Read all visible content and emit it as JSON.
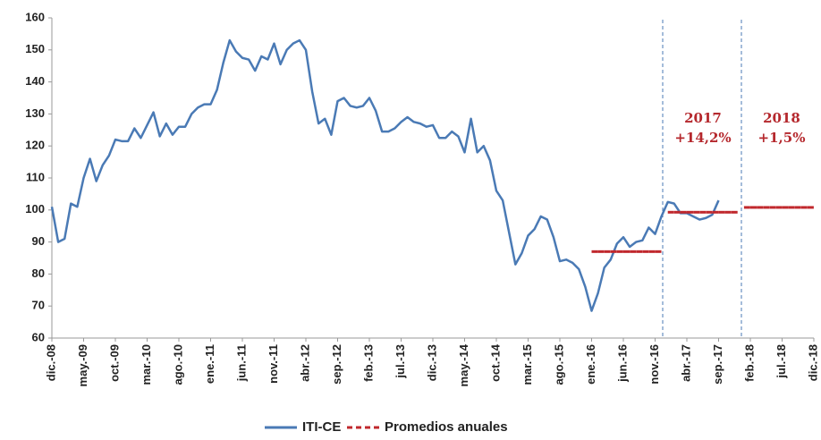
{
  "chart_data": {
    "type": "line",
    "categories": [
      "dic.-08",
      null,
      null,
      null,
      null,
      "may.-09",
      null,
      null,
      null,
      null,
      "oct.-09",
      null,
      null,
      null,
      null,
      "mar.-10",
      null,
      null,
      null,
      null,
      "ago.-10",
      null,
      null,
      null,
      null,
      "ene.-11",
      null,
      null,
      null,
      null,
      "jun.-11",
      null,
      null,
      null,
      null,
      "nov.-11",
      null,
      null,
      null,
      null,
      "abr.-12",
      null,
      null,
      null,
      null,
      "sep.-12",
      null,
      null,
      null,
      null,
      "feb.-13",
      null,
      null,
      null,
      null,
      "jul.-13",
      null,
      null,
      null,
      null,
      "dic.-13",
      null,
      null,
      null,
      null,
      "may.-14",
      null,
      null,
      null,
      null,
      "oct.-14",
      null,
      null,
      null,
      null,
      "mar.-15",
      null,
      null,
      null,
      null,
      "ago.-15",
      null,
      null,
      null,
      null,
      "ene.-16",
      null,
      null,
      null,
      null,
      "jun.-16",
      null,
      null,
      null,
      null,
      "nov.-16",
      null,
      null,
      null,
      null,
      "abr.-17",
      null,
      null,
      null,
      null,
      "sep.-17",
      null,
      null,
      null,
      null,
      "feb.-18",
      null,
      null,
      null,
      null,
      "jul.-18",
      null,
      null,
      null,
      null,
      "dic.-18"
    ],
    "series": [
      {
        "name": "ITI-CE",
        "color": "#4a7ab5",
        "style": "solid",
        "values": [
          101,
          90,
          91,
          102,
          101,
          110,
          116,
          109,
          114,
          117,
          122,
          121.5,
          121.5,
          125.5,
          122.5,
          126.5,
          130.5,
          123,
          127,
          123.5,
          126,
          126,
          130,
          132,
          133,
          133,
          137.5,
          146,
          153,
          149.5,
          147.5,
          147,
          143.5,
          148,
          147,
          152,
          145.5,
          150,
          152,
          153,
          150,
          137,
          127,
          128.5,
          123.5,
          134,
          135,
          132.5,
          132,
          132.5,
          135,
          131,
          124.5,
          124.5,
          125.5,
          127.5,
          129,
          127.5,
          127,
          126,
          126.5,
          122.5,
          122.5,
          124.5,
          123,
          118,
          128.5,
          118,
          120,
          115.5,
          106,
          103,
          93,
          83,
          86.5,
          92,
          94,
          98,
          97,
          91.5,
          84,
          84.5,
          83.5,
          81.5,
          76,
          68.5,
          74,
          82,
          84.5,
          89.5,
          91.5,
          88.5,
          90,
          90.5,
          94.5,
          92.5,
          98,
          102.5,
          102,
          99,
          99,
          98,
          97,
          97.5,
          98.5,
          103,
          null,
          null,
          null,
          null,
          null,
          null,
          null,
          null,
          null,
          null,
          null,
          null,
          null,
          null,
          null
        ]
      },
      {
        "name": "Promedios anuales",
        "color": "#c0282d",
        "style": "dashed",
        "values": [
          null,
          null,
          null,
          null,
          null,
          null,
          null,
          null,
          null,
          null,
          null,
          null,
          null,
          null,
          null,
          null,
          null,
          null,
          null,
          null,
          null,
          null,
          null,
          null,
          null,
          null,
          null,
          null,
          null,
          null,
          null,
          null,
          null,
          null,
          null,
          null,
          null,
          null,
          null,
          null,
          null,
          null,
          null,
          null,
          null,
          null,
          null,
          null,
          null,
          null,
          null,
          null,
          null,
          null,
          null,
          null,
          null,
          null,
          null,
          null,
          null,
          null,
          null,
          null,
          null,
          null,
          null,
          null,
          null,
          null,
          null,
          null,
          null,
          null,
          null,
          null,
          null,
          null,
          null,
          null,
          null,
          null,
          null,
          null,
          null,
          87,
          87,
          87,
          87,
          87,
          87,
          87,
          87,
          87,
          87,
          87,
          null,
          99.3,
          99.3,
          99.3,
          99.3,
          99.3,
          99.3,
          99.3,
          99.3,
          99.3,
          99.3,
          99.3,
          null,
          100.8,
          100.8,
          100.8,
          100.8,
          100.8,
          100.8,
          100.8,
          100.8,
          100.8,
          100.8,
          100.8,
          null
        ]
      }
    ],
    "annotations": [
      {
        "lines": [
          "2017",
          "+14,2%"
        ]
      },
      {
        "lines": [
          "2018",
          "+1,5%"
        ]
      }
    ],
    "ylim": [
      60,
      160
    ],
    "yticks": [
      60,
      70,
      80,
      90,
      100,
      110,
      120,
      130,
      140,
      150,
      160
    ],
    "grid": false,
    "legend": "bottom"
  }
}
